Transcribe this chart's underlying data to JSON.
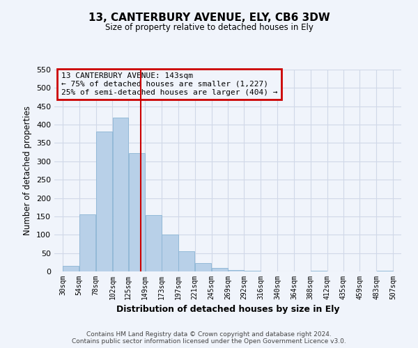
{
  "title1": "13, CANTERBURY AVENUE, ELY, CB6 3DW",
  "title2": "Size of property relative to detached houses in Ely",
  "xlabel": "Distribution of detached houses by size in Ely",
  "ylabel": "Number of detached properties",
  "bar_left_edges": [
    30,
    54,
    78,
    102,
    125,
    149,
    173,
    197,
    221,
    245,
    269,
    292,
    316,
    340,
    364,
    388,
    412,
    435,
    459,
    483
  ],
  "bar_widths": [
    24,
    24,
    24,
    23,
    24,
    24,
    24,
    24,
    24,
    24,
    23,
    24,
    24,
    24,
    24,
    24,
    23,
    24,
    24,
    24
  ],
  "bar_heights": [
    15,
    155,
    382,
    420,
    322,
    153,
    100,
    55,
    22,
    10,
    3,
    1,
    0,
    0,
    0,
    1,
    0,
    0,
    0,
    1
  ],
  "bar_color": "#b8d0e8",
  "bar_edgecolor": "#8ab4d4",
  "vline_x": 143,
  "vline_color": "#cc0000",
  "ylim": [
    0,
    550
  ],
  "yticks": [
    0,
    50,
    100,
    150,
    200,
    250,
    300,
    350,
    400,
    450,
    500,
    550
  ],
  "xtick_labels": [
    "30sqm",
    "54sqm",
    "78sqm",
    "102sqm",
    "125sqm",
    "149sqm",
    "173sqm",
    "197sqm",
    "221sqm",
    "245sqm",
    "269sqm",
    "292sqm",
    "316sqm",
    "340sqm",
    "364sqm",
    "388sqm",
    "412sqm",
    "435sqm",
    "459sqm",
    "483sqm",
    "507sqm"
  ],
  "xtick_positions": [
    30,
    54,
    78,
    102,
    125,
    149,
    173,
    197,
    221,
    245,
    269,
    292,
    316,
    340,
    364,
    388,
    412,
    435,
    459,
    483,
    507
  ],
  "annotation_line1": "13 CANTERBURY AVENUE: 143sqm",
  "annotation_line2": "← 75% of detached houses are smaller (1,227)",
  "annotation_line3": "25% of semi-detached houses are larger (404) →",
  "box_color": "#cc0000",
  "grid_color": "#d0d8e8",
  "footer1": "Contains HM Land Registry data © Crown copyright and database right 2024.",
  "footer2": "Contains public sector information licensed under the Open Government Licence v3.0.",
  "background_color": "#f0f4fb"
}
